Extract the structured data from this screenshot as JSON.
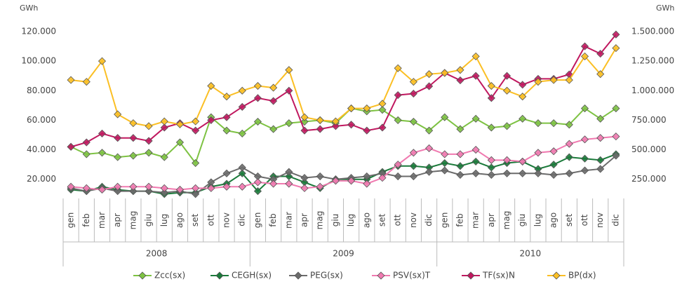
{
  "chart_data": {
    "type": "line",
    "y_unit": "GWh",
    "y2_unit": "GWh",
    "categories": [
      "gen",
      "feb",
      "mar",
      "apr",
      "mag",
      "giu",
      "lug",
      "ago",
      "set",
      "ott",
      "nov",
      "dic",
      "gen",
      "feb",
      "mar",
      "apr",
      "mag",
      "giu",
      "lug",
      "ago",
      "set",
      "ott",
      "nov",
      "dic",
      "gen",
      "feb",
      "mar",
      "apr",
      "mag",
      "giu",
      "lug",
      "ago",
      "set",
      "ott",
      "nov",
      "dic"
    ],
    "groups": [
      "2008",
      "2009",
      "2010"
    ],
    "ylim": [
      8000,
      120000
    ],
    "yticks": [
      {
        "value": 20000,
        "label": "20.000"
      },
      {
        "value": 40000,
        "label": "40.000"
      },
      {
        "value": 60000,
        "label": "60.000"
      },
      {
        "value": 80000,
        "label": "80.000"
      },
      {
        "value": 100000,
        "label": "100.000"
      },
      {
        "value": 120000,
        "label": "120.000"
      }
    ],
    "y2lim": [
      100000,
      1500000
    ],
    "y2ticks": [
      {
        "value": 250000,
        "label": "250.000"
      },
      {
        "value": 500000,
        "label": "500.000"
      },
      {
        "value": 750000,
        "label": "750.000"
      },
      {
        "value": 1000000,
        "label": "1.000.000"
      },
      {
        "value": 1250000,
        "label": "1.250.000"
      },
      {
        "value": 1500000,
        "label": "1.500.000"
      }
    ],
    "grid": false,
    "legend": "bottom",
    "series": [
      {
        "name": "Zcc(sx)",
        "color": "#7dc242",
        "values": [
          42000,
          37000,
          38000,
          35000,
          36000,
          38000,
          35000,
          45000,
          31000,
          62000,
          53000,
          51000,
          59000,
          54000,
          58000,
          59000,
          60000,
          58000,
          68000,
          66000,
          67000,
          60000,
          59000,
          53000,
          62000,
          54000,
          61000,
          55000,
          56000,
          61000,
          58000,
          58000,
          57000,
          68000,
          61000,
          68000
        ]
      },
      {
        "name": "CEGH(sx)",
        "color": "#1a7a3a",
        "values": [
          13000,
          12000,
          15000,
          13000,
          12000,
          12000,
          10000,
          11000,
          11000,
          15000,
          17000,
          24000,
          12000,
          22000,
          22000,
          18000,
          14000,
          20000,
          20000,
          20000,
          25000,
          29000,
          29000,
          28000,
          31000,
          29000,
          32000,
          28000,
          31000,
          32000,
          27000,
          30000,
          35000,
          34000,
          33000,
          37000
        ]
      },
      {
        "name": "PEG(sx)",
        "color": "#6b6b6b",
        "values": [
          14000,
          12000,
          14000,
          12000,
          12000,
          12000,
          11000,
          12000,
          10000,
          18000,
          24000,
          28000,
          22000,
          20000,
          25000,
          21000,
          22000,
          20000,
          21000,
          22000,
          24000,
          22000,
          22000,
          25000,
          26000,
          23000,
          24000,
          23000,
          24000,
          24000,
          24000,
          23000,
          24000,
          26000,
          27000,
          36000
        ]
      },
      {
        "name": "PSV(sx)T",
        "color": "#f07ab0",
        "values": [
          15000,
          14000,
          13000,
          15000,
          15000,
          15000,
          14000,
          13000,
          14000,
          14000,
          15000,
          15000,
          18000,
          17000,
          17000,
          14000,
          15000,
          19000,
          19000,
          17000,
          21000,
          30000,
          38000,
          41000,
          37000,
          37000,
          40000,
          33000,
          33000,
          32000,
          38000,
          39000,
          44000,
          47000,
          48000,
          49000
        ]
      },
      {
        "name": "TF(sx)N",
        "color": "#c0185f",
        "values": [
          42000,
          45000,
          51000,
          48000,
          48000,
          46000,
          55000,
          58000,
          53000,
          60000,
          62000,
          69000,
          75000,
          73000,
          80000,
          53000,
          54000,
          56000,
          57000,
          53000,
          55000,
          77000,
          78000,
          83000,
          92000,
          87000,
          90000,
          75000,
          90000,
          84000,
          88000,
          88000,
          91000,
          110000,
          105000,
          118000
        ]
      },
      {
        "name": "BP(dx)",
        "color": "#fbbf24",
        "axis": "y2",
        "values": [
          1090000,
          1075000,
          1250000,
          800000,
          725000,
          700000,
          740000,
          715000,
          740000,
          1040000,
          950000,
          1000000,
          1040000,
          1025000,
          1175000,
          775000,
          750000,
          740000,
          850000,
          850000,
          890000,
          1190000,
          1075000,
          1140000,
          1150000,
          1175000,
          1290000,
          1040000,
          1000000,
          950000,
          1075000,
          1090000,
          1090000,
          1290000,
          1140000,
          1360000
        ]
      }
    ]
  }
}
